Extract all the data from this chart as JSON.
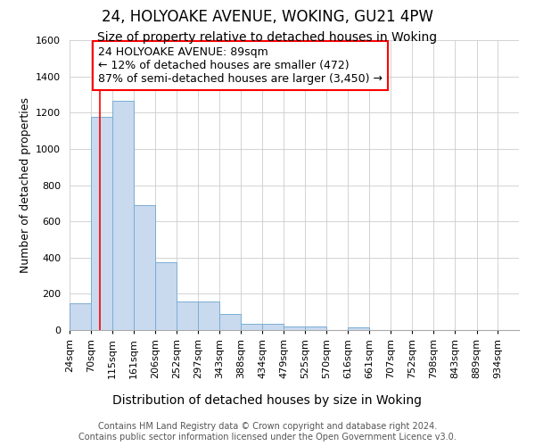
{
  "title1": "24, HOLYOAKE AVENUE, WOKING, GU21 4PW",
  "title2": "Size of property relative to detached houses in Woking",
  "xlabel": "Distribution of detached houses by size in Woking",
  "ylabel": "Number of detached properties",
  "bar_edges": [
    24,
    70,
    115,
    161,
    206,
    252,
    297,
    343,
    388,
    434,
    479,
    525,
    570,
    616,
    661,
    707,
    752,
    798,
    843,
    889,
    934
  ],
  "bar_heights": [
    150,
    1175,
    1265,
    690,
    375,
    160,
    160,
    90,
    35,
    35,
    20,
    20,
    0,
    15,
    0,
    0,
    0,
    0,
    0,
    0,
    0
  ],
  "bar_color": "#c9d9ee",
  "bar_edgecolor": "#7aaed4",
  "grid_color": "#cccccc",
  "background_color": "#ffffff",
  "red_line_x": 89,
  "annotation_text": "24 HOLYOAKE AVENUE: 89sqm\n← 12% of detached houses are smaller (472)\n87% of semi-detached houses are larger (3,450) →",
  "annotation_box_color": "white",
  "annotation_box_edgecolor": "red",
  "ylim": [
    0,
    1600
  ],
  "yticks": [
    0,
    200,
    400,
    600,
    800,
    1000,
    1200,
    1400,
    1600
  ],
  "footnote": "Contains HM Land Registry data © Crown copyright and database right 2024.\nContains public sector information licensed under the Open Government Licence v3.0.",
  "title1_fontsize": 12,
  "title2_fontsize": 10,
  "xlabel_fontsize": 10,
  "ylabel_fontsize": 9,
  "tick_fontsize": 8,
  "annotation_fontsize": 9,
  "footnote_fontsize": 7
}
